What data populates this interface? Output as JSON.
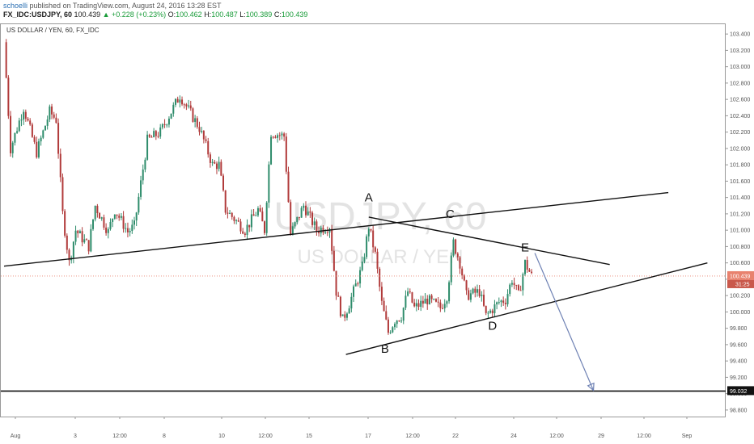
{
  "header": {
    "user": "schoelli",
    "published": "published on TradingView.com, August 24, 2016 13:28 EST",
    "symbol": "FX_IDC:USDJPY, 60",
    "last": "100.439",
    "change": "+0.228 (+0.23%)",
    "open_label": "O:",
    "open": "100.462",
    "high_label": "H:",
    "high": "100.487",
    "low_label": "L:",
    "low": "100.389",
    "close_label": "C:",
    "close": "100.439"
  },
  "chart_data": {
    "type": "candlestick",
    "title": "US DOLLAR / YEN, 60, FX_IDC",
    "watermark": {
      "symbol": "USDJPY, 60",
      "name": "US DOLLAR / YEN"
    },
    "ylim": [
      98.72,
      103.52
    ],
    "y_ticks": [
      "103.400",
      "103.200",
      "103.000",
      "102.800",
      "102.600",
      "102.400",
      "102.200",
      "102.000",
      "101.800",
      "101.600",
      "101.400",
      "101.200",
      "101.000",
      "100.800",
      "100.600",
      "100.400",
      "100.200",
      "100.000",
      "99.800",
      "99.600",
      "99.400",
      "99.200",
      "99.000",
      "98.800"
    ],
    "x_ticks": [
      "Aug",
      "3",
      "12:00",
      "8",
      "12:00",
      "10",
      "12:00",
      "15",
      "17",
      "12:00",
      "22",
      "12:00",
      "24",
      "12:00",
      "26",
      "29",
      "12:00",
      "Sep"
    ],
    "price_label": "100.439",
    "countdown_label": "31:25",
    "level_label": "99.032",
    "level_value": 99.032,
    "up_color": "#2e8c6b",
    "down_color": "#b13a3a",
    "price_line_color": "#e8826e",
    "trend_lines": [
      {
        "name": "support-line-long",
        "points": [
          [
            0,
            100.56
          ],
          [
            102,
            101.46
          ]
        ]
      },
      {
        "name": "triangle-upper",
        "points": [
          [
            56,
            101.16
          ],
          [
            93,
            100.58
          ]
        ]
      },
      {
        "name": "triangle-lower",
        "points": [
          [
            52.5,
            99.48
          ],
          [
            108,
            100.6
          ]
        ]
      },
      {
        "name": "horizontal-level",
        "points": [
          [
            0,
            99.032
          ],
          [
            112,
            99.032
          ]
        ]
      },
      {
        "name": "projection-arrow",
        "points": [
          [
            81.5,
            100.72
          ],
          [
            90.5,
            99.04
          ]
        ]
      }
    ],
    "wave_labels": [
      {
        "text": "A",
        "x": 56,
        "y": 101.35
      },
      {
        "text": "B",
        "x": 58.5,
        "y": 99.5
      },
      {
        "text": "C",
        "x": 68.5,
        "y": 101.15
      },
      {
        "text": "D",
        "x": 75,
        "y": 99.78
      },
      {
        "text": "E",
        "x": 80,
        "y": 100.74
      }
    ],
    "anchors": [
      [
        0,
        103.3
      ],
      [
        1,
        102.0
      ],
      [
        3,
        102.5
      ],
      [
        5,
        101.95
      ],
      [
        7,
        102.45
      ],
      [
        8,
        102.35
      ],
      [
        9,
        101.2
      ],
      [
        10,
        100.6
      ],
      [
        11,
        101.0
      ],
      [
        13,
        100.8
      ],
      [
        14,
        101.3
      ],
      [
        16,
        100.98
      ],
      [
        17,
        101.25
      ],
      [
        19,
        100.98
      ],
      [
        20,
        101.05
      ],
      [
        22,
        102.1
      ],
      [
        24,
        102.2
      ],
      [
        27,
        102.65
      ],
      [
        30,
        102.25
      ],
      [
        32,
        101.8
      ],
      [
        33,
        101.8
      ],
      [
        34,
        101.25
      ],
      [
        37,
        101.0
      ],
      [
        39,
        101.25
      ],
      [
        40,
        101.0
      ],
      [
        41,
        102.2
      ],
      [
        43,
        102.15
      ],
      [
        44,
        100.95
      ],
      [
        46,
        101.3
      ],
      [
        48,
        101.0
      ],
      [
        50,
        101.05
      ],
      [
        51,
        100.25
      ],
      [
        52,
        99.9
      ],
      [
        53,
        100.1
      ],
      [
        55,
        100.55
      ],
      [
        56,
        101.05
      ],
      [
        57,
        100.7
      ],
      [
        58,
        100.1
      ],
      [
        59,
        99.75
      ],
      [
        60,
        99.9
      ],
      [
        61,
        99.95
      ],
      [
        62,
        100.25
      ],
      [
        63,
        100.05
      ],
      [
        65,
        100.15
      ],
      [
        67,
        100.05
      ],
      [
        68,
        100.2
      ],
      [
        69,
        100.85
      ],
      [
        70,
        100.6
      ],
      [
        71,
        100.2
      ],
      [
        73,
        100.25
      ],
      [
        74,
        99.95
      ],
      [
        76,
        100.12
      ],
      [
        77,
        100.15
      ],
      [
        78,
        100.4
      ],
      [
        79,
        100.2
      ],
      [
        80,
        100.6
      ],
      [
        81,
        100.44
      ]
    ]
  }
}
